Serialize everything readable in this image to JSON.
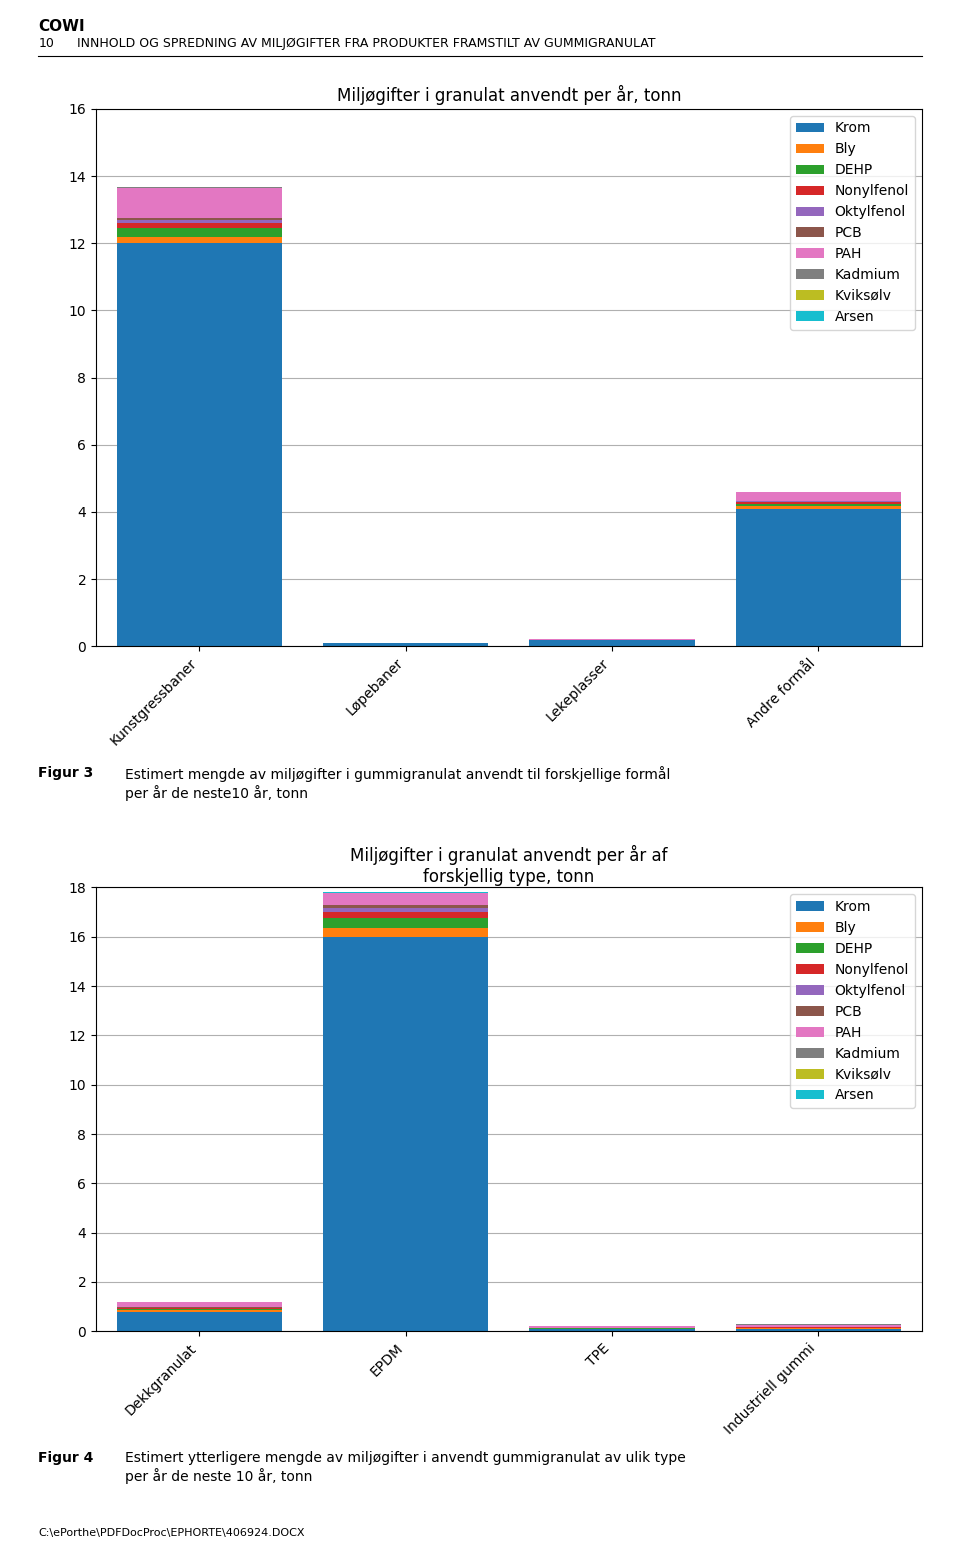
{
  "chart_data": [
    {
      "type": "bar",
      "stacked": true,
      "grid": true,
      "legend": "upper right",
      "title": "Miljøgifter i granulat anvendt per år, tonn",
      "categories": [
        "Kunstgressbaner",
        "Løpebaner",
        "Lekeplasser",
        "Andre formål"
      ],
      "ylim": [
        0,
        16
      ],
      "yticks": [
        0,
        2,
        4,
        6,
        8,
        10,
        12,
        14,
        16
      ],
      "series": [
        {
          "name": "Krom",
          "values": [
            12.0,
            0.09,
            0.18,
            4.1
          ]
        },
        {
          "name": "Bly",
          "values": [
            0.2,
            0.0014,
            0.003,
            0.06
          ]
        },
        {
          "name": "DEHP",
          "values": [
            0.25,
            0.002,
            0.004,
            0.075
          ]
        },
        {
          "name": "Nonylfenol",
          "values": [
            0.15,
            0.001,
            0.002,
            0.045
          ]
        },
        {
          "name": "Oktylfenol",
          "values": [
            0.1,
            0.0007,
            0.0015,
            0.03
          ]
        },
        {
          "name": "PCB",
          "values": [
            0.06,
            0.0004,
            0.001,
            0.018
          ]
        },
        {
          "name": "PAH",
          "values": [
            0.9,
            0.007,
            0.015,
            0.27
          ]
        },
        {
          "name": "Kadmium",
          "values": [
            0.005,
            3e-05,
            7e-05,
            0.0015
          ]
        },
        {
          "name": "Kviksølv",
          "values": [
            0.005,
            3e-05,
            7e-05,
            0.0015
          ]
        },
        {
          "name": "Arsen",
          "values": [
            0.005,
            3e-05,
            7e-05,
            0.0015
          ]
        }
      ],
      "annotations": [
        "COWI",
        "10",
        "INNHOLD OG SPREDNING AV MILJØGIFTER FRA PRODUKTER FRAMSTILT AV GUMMIGRANULAT",
        "Figur 3",
        "Estimert mengde av miljøgifter i gummigranulat anvendt til forskjellige formål\nper år de neste10 år, tonn"
      ]
    },
    {
      "type": "bar",
      "stacked": true,
      "grid": true,
      "legend": "upper right",
      "title": "Miljøgifter i granulat anvendt per år af\nforskjellig type, tonn",
      "categories": [
        "Dekkgranulat",
        "EPDM",
        "TPE",
        "Industriell gummi"
      ],
      "ylim": [
        0,
        18
      ],
      "yticks": [
        0,
        2,
        4,
        6,
        8,
        10,
        12,
        14,
        16,
        18
      ],
      "series": [
        {
          "name": "Krom",
          "values": [
            0.8,
            16.0,
            0.08,
            0.09
          ]
        },
        {
          "name": "Bly",
          "values": [
            0.044,
            0.34,
            0.018,
            0.022
          ]
        },
        {
          "name": "DEHP",
          "values": [
            0.055,
            0.42,
            0.022,
            0.027
          ]
        },
        {
          "name": "Nonylfenol",
          "values": [
            0.033,
            0.25,
            0.013,
            0.016
          ]
        },
        {
          "name": "Oktylfenol",
          "values": [
            0.022,
            0.17,
            0.009,
            0.011
          ]
        },
        {
          "name": "PCB",
          "values": [
            0.013,
            0.1,
            0.005,
            0.007
          ]
        },
        {
          "name": "PAH",
          "values": [
            0.2,
            0.5,
            0.08,
            0.1
          ]
        },
        {
          "name": "Kadmium",
          "values": [
            0.001,
            0.008,
            0.0004,
            0.0005
          ]
        },
        {
          "name": "Kviksølv",
          "values": [
            0.001,
            0.008,
            0.0004,
            0.0005
          ]
        },
        {
          "name": "Arsen",
          "values": [
            0.001,
            0.008,
            0.0004,
            0.0005
          ]
        }
      ],
      "annotations": [
        "Figur 4",
        "Estimert ytterligere mengde av miljøgifter i anvendt gummigranulat av ulik type\nper år de neste 10 år, tonn",
        "C:\\ePorthe\\PDFDocProc\\EPHORTE\\406924.DOCX"
      ]
    }
  ]
}
